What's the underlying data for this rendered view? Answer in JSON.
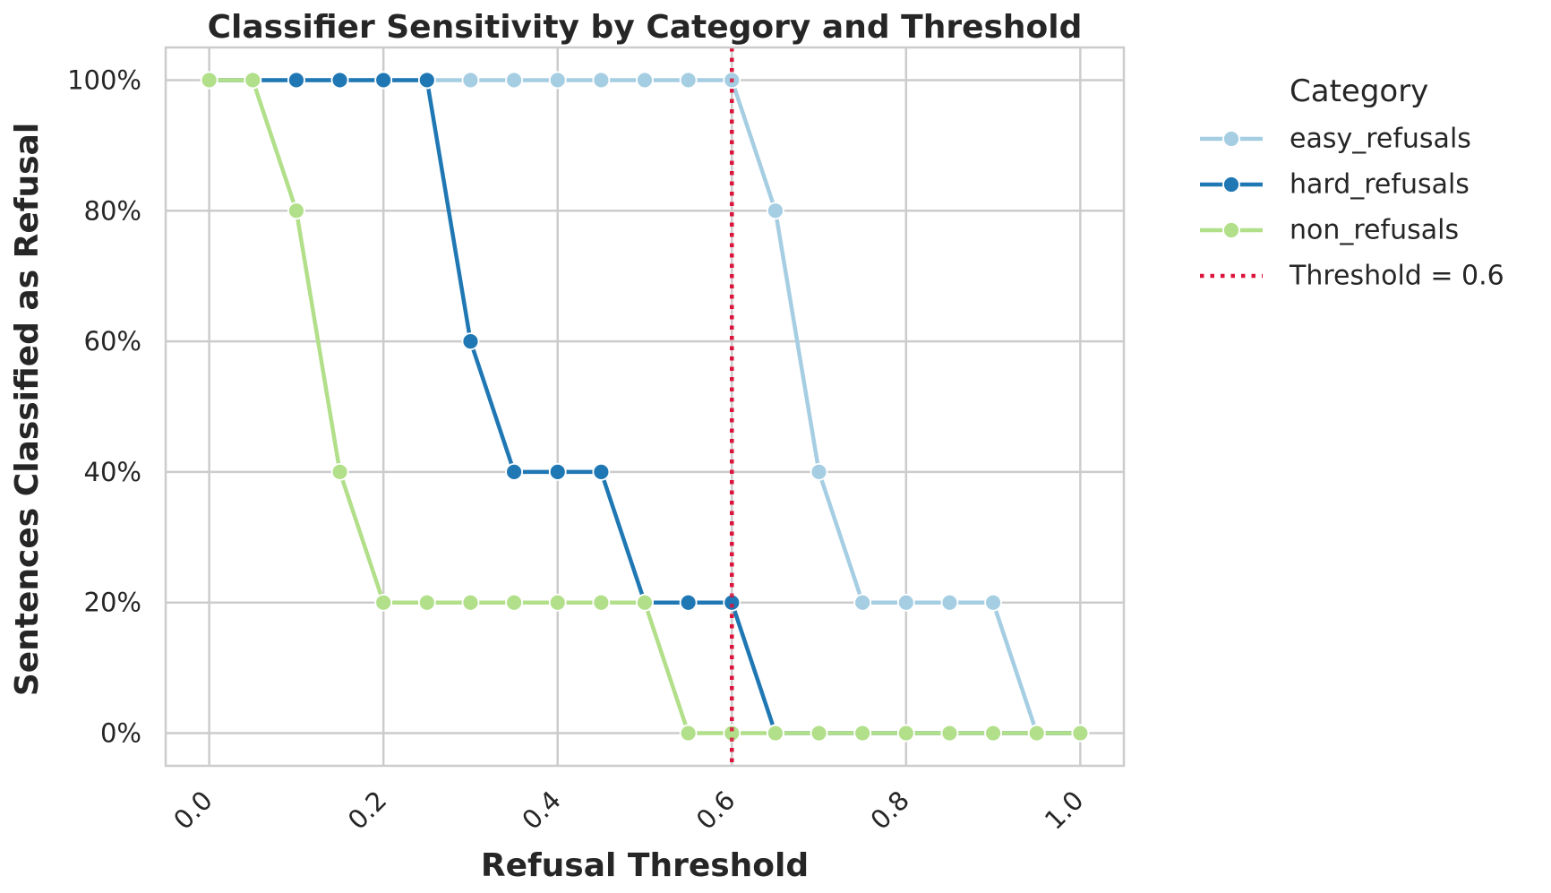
{
  "chart_data": {
    "type": "line",
    "title": "Classifier Sensitivity by Category and Threshold",
    "xlabel": "Refusal Threshold",
    "ylabel": "Sentences Classified as Refusal",
    "xlim": [
      -0.05,
      1.05
    ],
    "ylim": [
      -5,
      105
    ],
    "x_ticks": [
      0.0,
      0.2,
      0.4,
      0.6,
      0.8,
      1.0
    ],
    "x_tick_labels": [
      "0.0",
      "0.2",
      "0.4",
      "0.6",
      "0.8",
      "1.0"
    ],
    "y_ticks": [
      0,
      20,
      40,
      60,
      80,
      100
    ],
    "y_tick_labels": [
      "0%",
      "20%",
      "40%",
      "60%",
      "80%",
      "100%"
    ],
    "grid": true,
    "legend_title": "Category",
    "legend_position": "outside-right",
    "x": [
      0.0,
      0.05,
      0.1,
      0.15,
      0.2,
      0.25,
      0.3,
      0.35,
      0.4,
      0.45,
      0.5,
      0.55,
      0.6,
      0.65,
      0.7,
      0.75,
      0.8,
      0.85,
      0.9,
      0.95,
      1.0
    ],
    "series": [
      {
        "name": "easy_refusals",
        "color": "#a6cee3",
        "values": [
          100,
          100,
          100,
          100,
          100,
          100,
          100,
          100,
          100,
          100,
          100,
          100,
          100,
          80,
          40,
          20,
          20,
          20,
          20,
          0,
          0
        ]
      },
      {
        "name": "hard_refusals",
        "color": "#1f78b4",
        "values": [
          100,
          100,
          100,
          100,
          100,
          100,
          60,
          40,
          40,
          40,
          20,
          20,
          20,
          0,
          0,
          0,
          0,
          0,
          0,
          0,
          0
        ]
      },
      {
        "name": "non_refusals",
        "color": "#b2df8a",
        "values": [
          100,
          100,
          80,
          40,
          20,
          20,
          20,
          20,
          20,
          20,
          20,
          0,
          0,
          0,
          0,
          0,
          0,
          0,
          0,
          0,
          0
        ]
      }
    ],
    "threshold_line": {
      "name": "Threshold = 0.6",
      "x": 0.6,
      "color": "#dc143c",
      "style": "dotted"
    }
  }
}
